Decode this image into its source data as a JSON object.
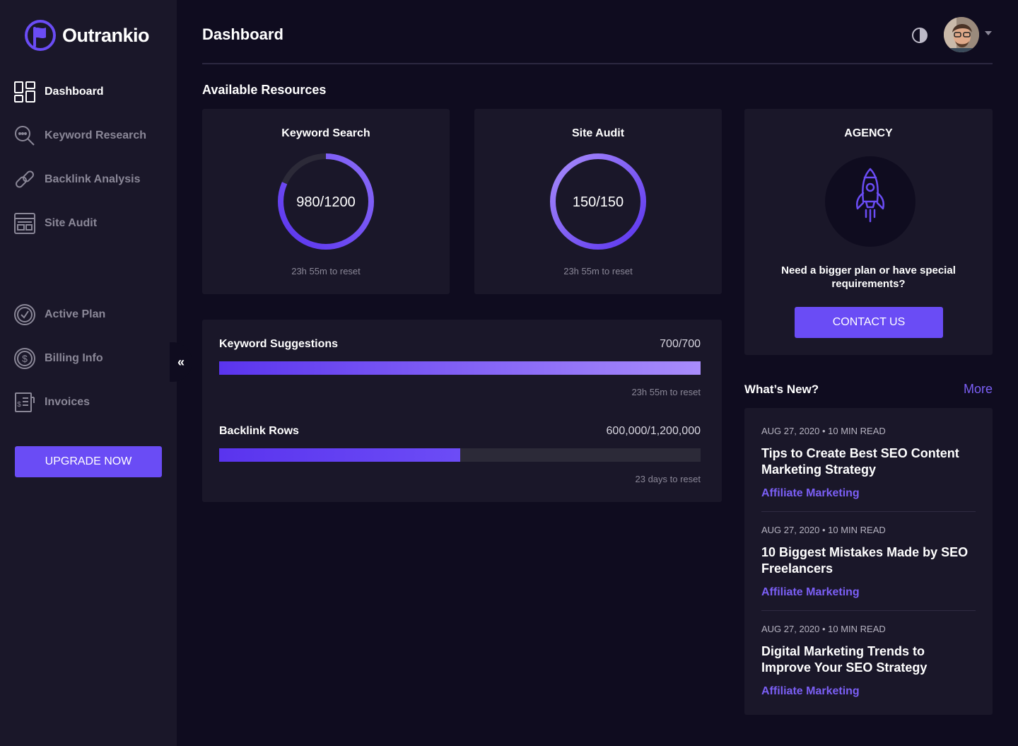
{
  "app": {
    "name": "Outrankio"
  },
  "sidebar": {
    "items": [
      {
        "label": "Dashboard",
        "icon": "dashboard-grid-icon",
        "active": true
      },
      {
        "label": "Keyword Research",
        "icon": "magnifier-icon",
        "active": false
      },
      {
        "label": "Backlink Analysis",
        "icon": "link-icon",
        "active": false
      },
      {
        "label": "Site Audit",
        "icon": "browser-window-icon",
        "active": false
      }
    ],
    "account_items": [
      {
        "label": "Active Plan",
        "icon": "check-circle-icon"
      },
      {
        "label": "Billing Info",
        "icon": "dollar-circle-icon"
      },
      {
        "label": "Invoices",
        "icon": "invoice-icon"
      }
    ],
    "upgrade_label": "UPGRADE NOW",
    "collapse_symbol": "«"
  },
  "header": {
    "title": "Dashboard"
  },
  "resources": {
    "title": "Available Resources",
    "keyword_search": {
      "title": "Keyword Search",
      "value": "980/1200",
      "used": 980,
      "total": 1200,
      "reset": "23h 55m to reset"
    },
    "site_audit": {
      "title": "Site Audit",
      "value": "150/150",
      "used": 150,
      "total": 150,
      "reset": "23h 55m to reset"
    },
    "agency": {
      "title": "AGENCY",
      "text": "Need a bigger plan or have special requirements?",
      "button": "CONTACT US"
    }
  },
  "usage": {
    "keyword_suggestions": {
      "label": "Keyword Suggestions",
      "value": "700/700",
      "fraction": 1.0,
      "reset": "23h 55m to reset"
    },
    "backlink_rows": {
      "label": "Backlink Rows",
      "value": "600,000/1,200,000",
      "fraction": 0.5,
      "reset": "23 days to reset"
    }
  },
  "news": {
    "heading": "What’s New?",
    "more": "More",
    "items": [
      {
        "meta": "AUG  27, 2020 • 10 MIN READ",
        "title": "Tips to Create Best SEO Content Marketing Strategy",
        "category": "Affiliate Marketing"
      },
      {
        "meta": "AUG  27, 2020 • 10 MIN READ",
        "title": "10 Biggest Mistakes Made by SEO Freelancers",
        "category": "Affiliate Marketing"
      },
      {
        "meta": "AUG  27, 2020 • 10 MIN READ",
        "title": "Digital Marketing Trends to Improve Your SEO Strategy",
        "category": "Affiliate Marketing"
      }
    ]
  },
  "colors": {
    "accent": "#6a4cf5",
    "background": "#0f0c1f",
    "panel": "#1a1729",
    "muted": "#8a8797"
  }
}
